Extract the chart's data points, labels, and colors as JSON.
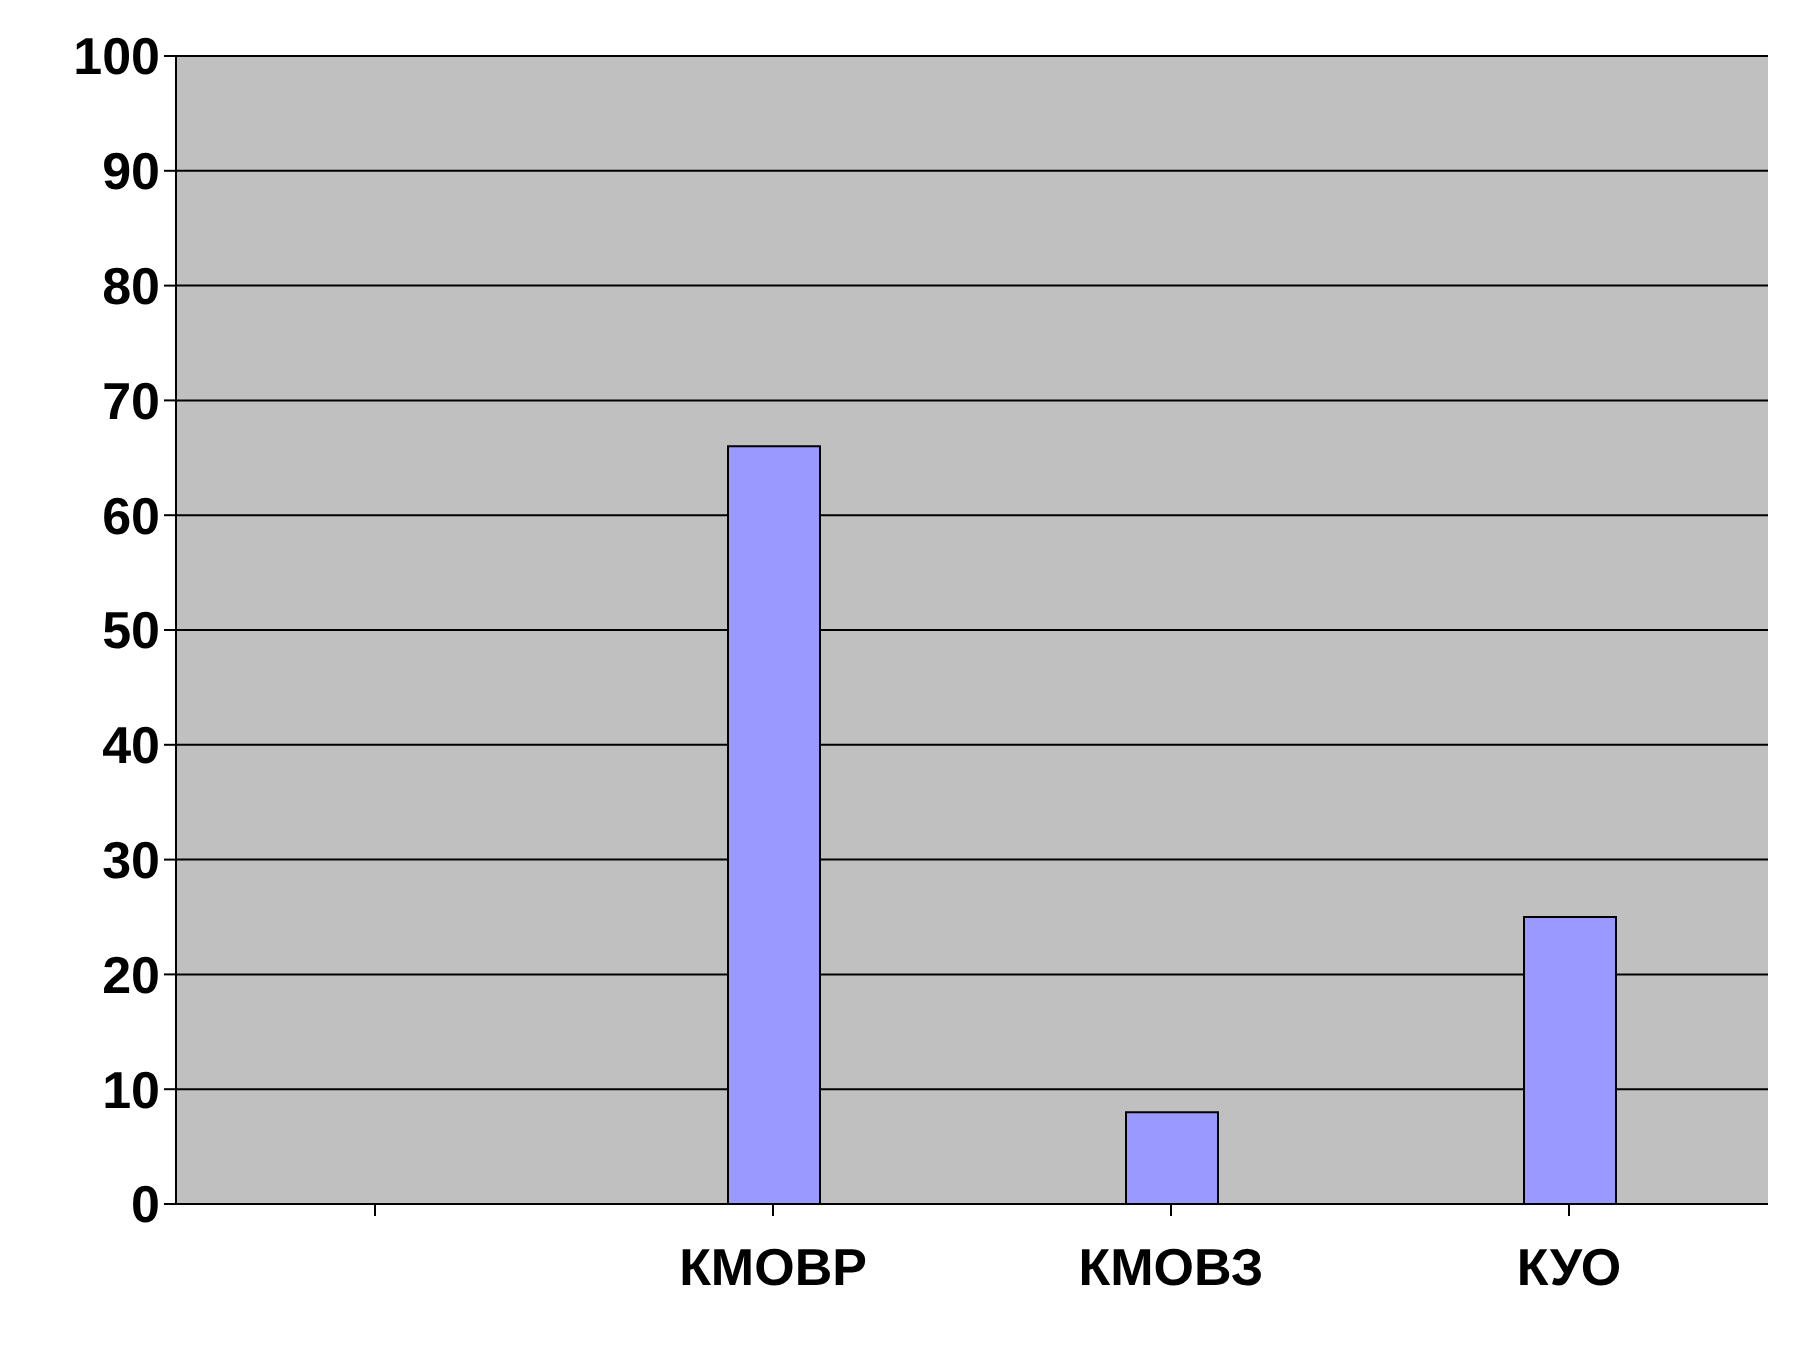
{
  "chart_data": {
    "type": "bar",
    "categories": [
      null,
      "КМОВР",
      "КМОВЗ",
      "КУО"
    ],
    "values": [
      null,
      66,
      8,
      25
    ],
    "color": "#9999ff",
    "ylim": [
      0,
      100
    ],
    "yticks": [
      0,
      10,
      20,
      30,
      40,
      50,
      60,
      70,
      80,
      90,
      100
    ],
    "grid": "y"
  }
}
